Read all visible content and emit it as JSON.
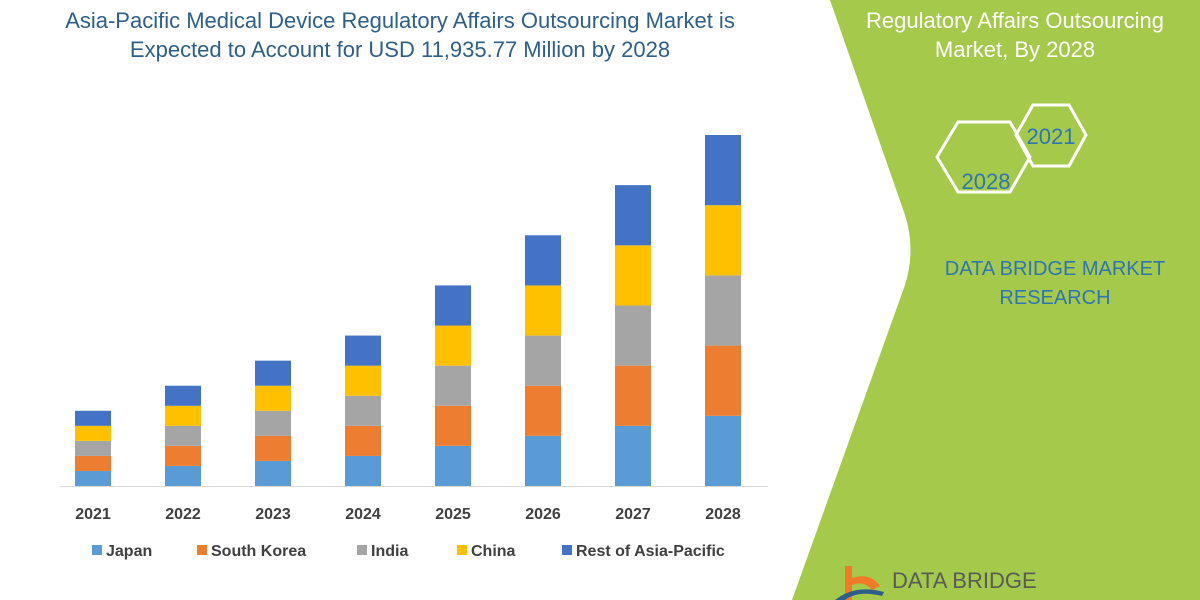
{
  "title": "Asia-Pacific Medical Device Regulatory Affairs Outsourcing Market is Expected to Account for USD 11,935.77 Million by 2028",
  "side_panel": {
    "title": "Regulatory Affairs Outsourcing Market, By 2028",
    "hex_labels": [
      "2028",
      "2021"
    ],
    "brand": "DATA BRIDGE MARKET RESEARCH",
    "logo_text": "DATA BRIDGE",
    "color": "#a5c94a"
  },
  "chart_data": {
    "type": "bar",
    "stacked": true,
    "categories": [
      "2021",
      "2022",
      "2023",
      "2024",
      "2025",
      "2026",
      "2027",
      "2028"
    ],
    "series": [
      {
        "name": "Japan",
        "color": "#5b9bd5",
        "values": [
          15,
          20,
          25,
          30,
          40,
          50,
          60,
          70
        ]
      },
      {
        "name": "South Korea",
        "color": "#ed7d31",
        "values": [
          15,
          20,
          25,
          30,
          40,
          50,
          60,
          70
        ]
      },
      {
        "name": "India",
        "color": "#a5a5a5",
        "values": [
          15,
          20,
          25,
          30,
          40,
          50,
          60,
          70
        ]
      },
      {
        "name": "China",
        "color": "#ffc000",
        "values": [
          15,
          20,
          25,
          30,
          40,
          50,
          60,
          70
        ]
      },
      {
        "name": "Rest of Asia-Pacific",
        "color": "#4472c4",
        "values": [
          15,
          20,
          25,
          30,
          40,
          50,
          60,
          70
        ]
      }
    ],
    "y_axis_shown": false,
    "grid": false,
    "legend_position": "bottom"
  }
}
